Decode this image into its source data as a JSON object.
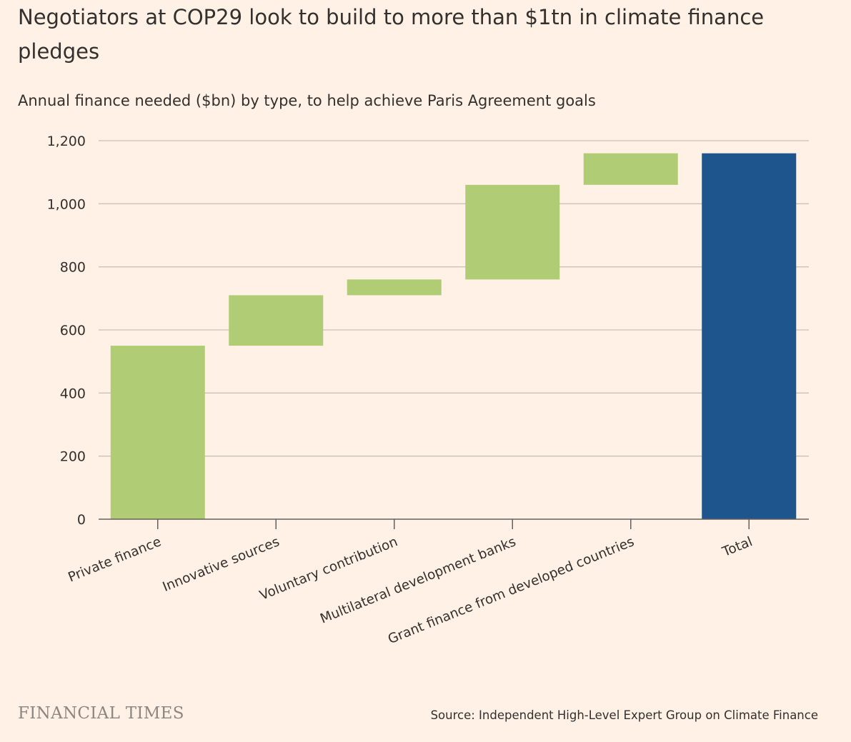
{
  "title": "Negotiators at COP29 look to build to more than $1tn in climate finance pledges",
  "subtitle": "Annual finance needed ($bn) by type, to help achieve Paris Agreement goals",
  "source": "Source: Independent High-Level Expert Group on Climate Finance",
  "logo": "FINANCIAL TIMES",
  "colors": {
    "background": "#fff1e5",
    "increment": "#b0cc74",
    "total": "#1e558c",
    "grid": "#ccc1b7",
    "axis": "#66605c",
    "text": "#33302e"
  },
  "chart_data": {
    "type": "waterfall",
    "categories": [
      "Private finance",
      "Innovative sources",
      "Voluntary contribution",
      "Multilateral development banks",
      "Grant finance from developed countries",
      "Total"
    ],
    "values": [
      550,
      160,
      50,
      300,
      100,
      1160
    ],
    "bar_kind": [
      "increment",
      "increment",
      "increment",
      "increment",
      "increment",
      "total"
    ],
    "title": "Negotiators at COP29 look to build to more than $1tn in climate finance pledges",
    "xlabel": "",
    "ylabel": "",
    "ylim": [
      0,
      1200
    ],
    "yticks": [
      0,
      200,
      400,
      600,
      800,
      1000,
      1200
    ],
    "ytick_labels": [
      "0",
      "200",
      "400",
      "600",
      "800",
      "1,000",
      "1,200"
    ],
    "grid": true,
    "legend": "none"
  }
}
